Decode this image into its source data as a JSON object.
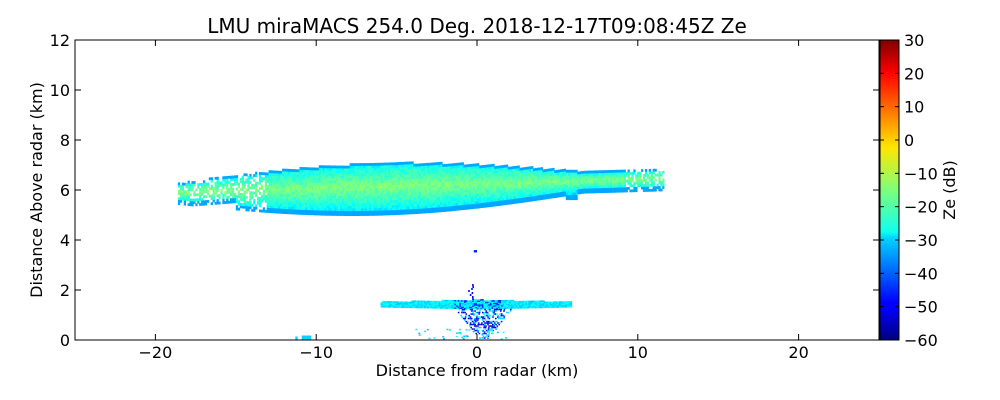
{
  "chart_data": {
    "type": "heatmap",
    "title": "LMU miraMACS 254.0 Deg. 2018-12-17T09:08:45Z  Ze",
    "xlabel": "Distance from radar (km)",
    "ylabel": "Distance Above radar  (km)",
    "xlim": [
      -25,
      25
    ],
    "ylim": [
      0,
      12
    ],
    "xticks": [
      -20,
      -10,
      0,
      10,
      20
    ],
    "xtick_labels": [
      "−20",
      "−10",
      "0",
      "10",
      "20"
    ],
    "yticks": [
      0,
      2,
      4,
      6,
      8,
      10,
      12
    ],
    "ytick_labels": [
      "0",
      "2",
      "4",
      "6",
      "8",
      "10",
      "12"
    ],
    "colorbar": {
      "label": "Ze (dB)",
      "range": [
        -60,
        30
      ],
      "ticks": [
        30,
        20,
        10,
        0,
        -10,
        -20,
        -30,
        -40,
        -50,
        -60
      ],
      "tick_labels": [
        "30",
        "20",
        "10",
        "0",
        "−10",
        "−20",
        "−30",
        "−40",
        "−50",
        "−60"
      ],
      "colormap": "jet"
    },
    "echo_regions": [
      {
        "name": "upper cloud layer",
        "x_range_km": [
          -18.6,
          11.6
        ],
        "height_range_km": [
          4.9,
          7.3
        ],
        "typical_ze_db": -20
      },
      {
        "name": "low layer",
        "x_range_km": [
          -6.0,
          5.8
        ],
        "height_range_km": [
          1.2,
          1.6
        ],
        "typical_ze_db": -30
      },
      {
        "name": "near-surface echoes",
        "x_range_km": [
          -11.0,
          2.0
        ],
        "height_range_km": [
          0.0,
          1.1
        ],
        "typical_ze_db": -50
      },
      {
        "name": "isolated echo",
        "x_range_km": [
          -0.2,
          0.0
        ],
        "height_range_km": [
          3.5,
          3.6
        ],
        "typical_ze_db": -45
      }
    ]
  }
}
